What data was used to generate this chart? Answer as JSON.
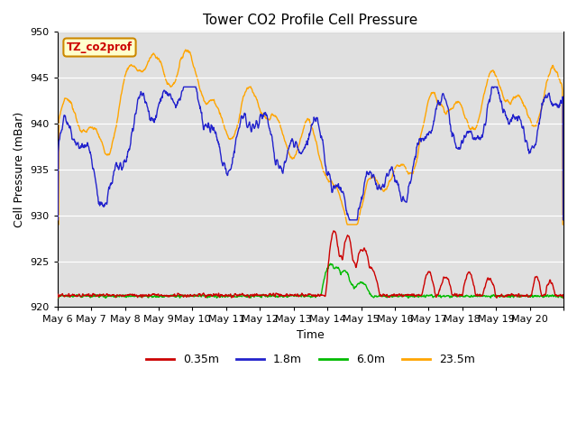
{
  "title": "Tower CO2 Profile Cell Pressure",
  "xlabel": "Time",
  "ylabel": "Cell Pressure (mBar)",
  "ylim": [
    920,
    950
  ],
  "legend_label": "TZ_co2prof",
  "series_labels": [
    "0.35m",
    "1.8m",
    "6.0m",
    "23.5m"
  ],
  "series_colors": [
    "#cc0000",
    "#2222cc",
    "#00bb00",
    "#ffa500"
  ],
  "background_color": "#e0e0e0",
  "x_tick_labels": [
    "May 6",
    "May 7",
    "May 8",
    "May 9",
    "May 10",
    "May 11",
    "May 12",
    "May 13",
    "May 14",
    "May 15",
    "May 16",
    "May 17",
    "May 18",
    "May 19",
    "May 20"
  ],
  "n_days": 15,
  "legend_box_color": "#ffffcc",
  "legend_box_edge": "#cc8800",
  "grid_color": "#ffffff"
}
